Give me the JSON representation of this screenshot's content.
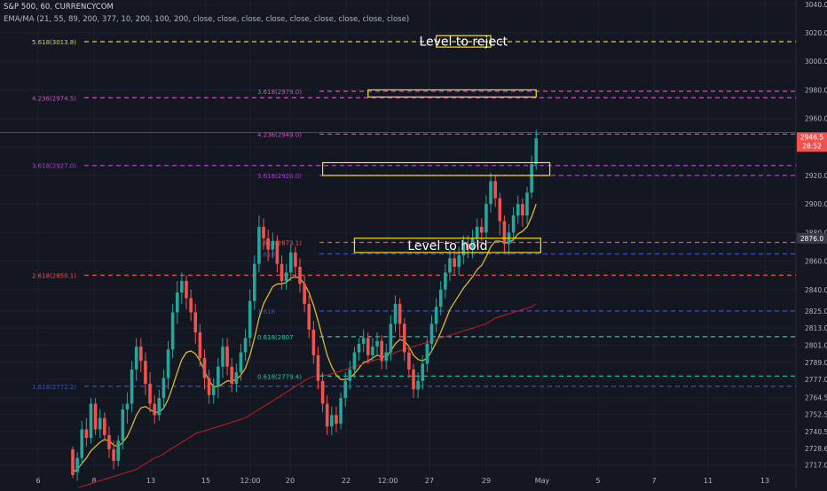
{
  "header": {
    "symbol_line": "S&P 500, 60, CURRENCYCOM",
    "indicator_line": "EMA/MA (21, 55, 89, 200, 377, 10, 200, 100, 200, close, close, close, close, close, close, close, close, close)"
  },
  "colors": {
    "background": "#131722",
    "grid": "#1c2030",
    "axis_text": "#b2b5be",
    "candle_up": "#26a69a",
    "candle_down": "#ef5350",
    "ema_fast": "#d9b82e",
    "ma_slow": "#b71c1c",
    "annotation_box": "#ffe000",
    "annotation_text": "#ffffff",
    "last_price_label": "#ef5350",
    "current_price_label": "#363a45"
  },
  "chart_data": {
    "type": "candlestick",
    "xlabel": "",
    "ylabel": "",
    "x_ticks": [
      "6",
      "8",
      "13",
      "15",
      "12:00",
      "20",
      "22",
      "12:00",
      "27",
      "29",
      "May",
      "5",
      "7",
      "11",
      "13"
    ],
    "y_ticks": [
      2717.0,
      2728.6,
      2740.5,
      2752.5,
      2764.5,
      2777.0,
      2789.0,
      2801.0,
      2813.0,
      2825.0,
      2840.0,
      2860.0,
      2880.0,
      2900.0,
      2920.0,
      2940.0,
      2960.0,
      2980.0,
      3000.0,
      3020.0,
      3040.0
    ],
    "ylim": [
      2710,
      3043
    ],
    "last_price": "2946.5",
    "last_price_value": 2946.5,
    "countdown": "28:52",
    "current_price": "2876.0",
    "current_price_value": 2876.0,
    "candles": [
      [
        2728,
        2710,
        2730,
        2708
      ],
      [
        2712,
        2722,
        2726,
        2706
      ],
      [
        2722,
        2742,
        2748,
        2718
      ],
      [
        2742,
        2736,
        2750,
        2730
      ],
      [
        2736,
        2760,
        2764,
        2732
      ],
      [
        2760,
        2742,
        2764,
        2738
      ],
      [
        2742,
        2750,
        2756,
        2736
      ],
      [
        2750,
        2738,
        2754,
        2734
      ],
      [
        2738,
        2728,
        2744,
        2722
      ],
      [
        2728,
        2720,
        2734,
        2714
      ],
      [
        2720,
        2734,
        2738,
        2716
      ],
      [
        2734,
        2756,
        2760,
        2728
      ],
      [
        2756,
        2760,
        2768,
        2746
      ],
      [
        2760,
        2784,
        2790,
        2754
      ],
      [
        2784,
        2800,
        2806,
        2776
      ],
      [
        2800,
        2790,
        2806,
        2782
      ],
      [
        2790,
        2774,
        2796,
        2766
      ],
      [
        2774,
        2760,
        2782,
        2754
      ],
      [
        2760,
        2752,
        2766,
        2746
      ],
      [
        2752,
        2764,
        2770,
        2748
      ],
      [
        2764,
        2778,
        2784,
        2756
      ],
      [
        2778,
        2798,
        2804,
        2770
      ],
      [
        2798,
        2824,
        2830,
        2792
      ],
      [
        2824,
        2838,
        2846,
        2816
      ],
      [
        2838,
        2846,
        2852,
        2830
      ],
      [
        2846,
        2834,
        2850,
        2826
      ],
      [
        2834,
        2824,
        2840,
        2818
      ],
      [
        2824,
        2810,
        2830,
        2802
      ],
      [
        2810,
        2792,
        2816,
        2786
      ],
      [
        2792,
        2778,
        2798,
        2770
      ],
      [
        2778,
        2766,
        2784,
        2760
      ],
      [
        2766,
        2772,
        2778,
        2760
      ],
      [
        2772,
        2786,
        2792,
        2764
      ],
      [
        2786,
        2800,
        2806,
        2778
      ],
      [
        2800,
        2786,
        2806,
        2780
      ],
      [
        2786,
        2774,
        2792,
        2768
      ],
      [
        2774,
        2782,
        2788,
        2768
      ],
      [
        2782,
        2796,
        2802,
        2776
      ],
      [
        2796,
        2806,
        2812,
        2790
      ],
      [
        2806,
        2832,
        2840,
        2800
      ],
      [
        2832,
        2858,
        2864,
        2826
      ],
      [
        2858,
        2884,
        2892,
        2852
      ],
      [
        2884,
        2876,
        2890,
        2868
      ],
      [
        2876,
        2868,
        2882,
        2860
      ],
      [
        2868,
        2874,
        2880,
        2862
      ],
      [
        2874,
        2858,
        2878,
        2852
      ],
      [
        2858,
        2846,
        2864,
        2840
      ],
      [
        2846,
        2852,
        2858,
        2840
      ],
      [
        2852,
        2866,
        2872,
        2846
      ],
      [
        2866,
        2856,
        2870,
        2848
      ],
      [
        2856,
        2844,
        2862,
        2838
      ],
      [
        2844,
        2830,
        2850,
        2824
      ],
      [
        2830,
        2812,
        2836,
        2806
      ],
      [
        2812,
        2794,
        2818,
        2788
      ],
      [
        2794,
        2776,
        2800,
        2770
      ],
      [
        2776,
        2760,
        2782,
        2754
      ],
      [
        2760,
        2744,
        2766,
        2738
      ],
      [
        2744,
        2752,
        2758,
        2738
      ],
      [
        2752,
        2746,
        2758,
        2740
      ],
      [
        2746,
        2764,
        2768,
        2742
      ],
      [
        2764,
        2776,
        2782,
        2758
      ],
      [
        2776,
        2784,
        2790,
        2770
      ],
      [
        2784,
        2796,
        2800,
        2778
      ],
      [
        2796,
        2802,
        2806,
        2790
      ],
      [
        2802,
        2806,
        2812,
        2796
      ],
      [
        2806,
        2794,
        2810,
        2788
      ],
      [
        2794,
        2800,
        2806,
        2790
      ],
      [
        2800,
        2804,
        2810,
        2794
      ],
      [
        2804,
        2790,
        2808,
        2784
      ],
      [
        2790,
        2796,
        2802,
        2784
      ],
      [
        2796,
        2816,
        2822,
        2790
      ],
      [
        2816,
        2830,
        2836,
        2810
      ],
      [
        2830,
        2816,
        2834,
        2806
      ],
      [
        2816,
        2796,
        2820,
        2790
      ],
      [
        2796,
        2784,
        2800,
        2778
      ],
      [
        2784,
        2770,
        2788,
        2764
      ],
      [
        2770,
        2776,
        2782,
        2764
      ],
      [
        2776,
        2788,
        2794,
        2770
      ],
      [
        2788,
        2802,
        2806,
        2782
      ],
      [
        2802,
        2816,
        2822,
        2796
      ],
      [
        2816,
        2828,
        2834,
        2810
      ],
      [
        2828,
        2840,
        2846,
        2822
      ],
      [
        2840,
        2852,
        2858,
        2834
      ],
      [
        2852,
        2862,
        2868,
        2846
      ],
      [
        2862,
        2856,
        2868,
        2850
      ],
      [
        2856,
        2864,
        2870,
        2850
      ],
      [
        2864,
        2872,
        2878,
        2858
      ],
      [
        2872,
        2868,
        2878,
        2862
      ],
      [
        2868,
        2876,
        2882,
        2862
      ],
      [
        2876,
        2884,
        2890,
        2870
      ],
      [
        2884,
        2880,
        2890,
        2874
      ],
      [
        2880,
        2900,
        2906,
        2876
      ],
      [
        2900,
        2916,
        2922,
        2894
      ],
      [
        2916,
        2904,
        2920,
        2898
      ],
      [
        2904,
        2888,
        2908,
        2878
      ],
      [
        2888,
        2872,
        2892,
        2866
      ],
      [
        2872,
        2880,
        2886,
        2864
      ],
      [
        2880,
        2892,
        2898,
        2874
      ],
      [
        2892,
        2900,
        2906,
        2886
      ],
      [
        2900,
        2892,
        2904,
        2884
      ],
      [
        2892,
        2908,
        2912,
        2886
      ],
      [
        2908,
        2928,
        2934,
        2904
      ],
      [
        2928,
        2946,
        2952,
        2924
      ]
    ],
    "series": [
      {
        "type": "line",
        "values": [
          2712,
          2714,
          2718,
          2722,
          2727,
          2730,
          2733,
          2735,
          2734,
          2731,
          2730,
          2733,
          2737,
          2744,
          2752,
          2757,
          2758,
          2756,
          2754,
          2754,
          2757,
          2763,
          2772,
          2782,
          2791,
          2796,
          2797,
          2795,
          2790,
          2783,
          2776,
          2772,
          2772,
          2774,
          2776,
          2776,
          2777,
          2780,
          2785,
          2794,
          2806,
          2820,
          2830,
          2836,
          2842,
          2844,
          2844,
          2845,
          2848,
          2849,
          2848,
          2844,
          2838,
          2829,
          2818,
          2806,
          2794,
          2786,
          2780,
          2777,
          2777,
          2778,
          2781,
          2785,
          2789,
          2790,
          2792,
          2794,
          2793,
          2793,
          2797,
          2802,
          2805,
          2804,
          2800,
          2794,
          2791,
          2790,
          2792,
          2797,
          2803,
          2810,
          2818,
          2826,
          2831,
          2836,
          2841,
          2845,
          2849,
          2854,
          2857,
          2863,
          2870,
          2874,
          2874,
          2873,
          2873,
          2875,
          2879,
          2881,
          2884,
          2891,
          2900
        ]
      },
      {
        "type": "line",
        "values": [
          2700,
          2701,
          2702,
          2703,
          2704,
          2705,
          2706,
          2707,
          2708,
          2709,
          2710,
          2711,
          2712,
          2713,
          2714,
          2716,
          2718,
          2720,
          2722,
          2723,
          2725,
          2727,
          2729,
          2731,
          2733,
          2735,
          2737,
          2739,
          2740,
          2741,
          2742,
          2743,
          2744,
          2745,
          2746,
          2747,
          2748,
          2749,
          2750,
          2752,
          2754,
          2756,
          2758,
          2760,
          2762,
          2764,
          2766,
          2768,
          2770,
          2772,
          2774,
          2776,
          2778,
          2779,
          2780,
          2780,
          2780,
          2781,
          2782,
          2783,
          2784,
          2785,
          2786,
          2787,
          2788,
          2789,
          2790,
          2791,
          2792,
          2793,
          2794,
          2796,
          2797,
          2798,
          2799,
          2800,
          2801,
          2802,
          2803,
          2804,
          2805,
          2806,
          2807,
          2808,
          2809,
          2810,
          2811,
          2812,
          2813,
          2814,
          2815,
          2816,
          2818,
          2820,
          2821,
          2822,
          2823,
          2824,
          2825,
          2826,
          2827,
          2828,
          2830
        ]
      }
    ]
  },
  "fib_levels": [
    {
      "label": "5.618(3013.8)",
      "price": 3013.8,
      "color": "#d4d44b",
      "label_pos": "left"
    },
    {
      "label": "4.236(2974.5)",
      "price": 2974.5,
      "color": "#d052c0",
      "label_pos": "left"
    },
    {
      "label": "3.618(2979.0)",
      "price": 2979.0,
      "color": "#d052c0",
      "label_pos": "mid"
    },
    {
      "label": "4.236(2949.0)",
      "price": 2949.0,
      "color": "#d052c0",
      "label_pos": "mid"
    },
    {
      "label": "3.618(2927.0)",
      "price": 2927.0,
      "color": "#b040d0",
      "label_pos": "left"
    },
    {
      "label": "3.618(2920.0)",
      "price": 2920.0,
      "color": "#b040d0",
      "label_pos": "mid"
    },
    {
      "label": "2.618(2873.1)",
      "price": 2873.1,
      "color": "#ef5350",
      "label_pos": "mid"
    },
    {
      "label": "1.618",
      "price": 2865.0,
      "color": "#3f51b5",
      "label_pos": "mid"
    },
    {
      "label": "2.618(2850.1)",
      "price": 2850.1,
      "color": "#ef5350",
      "label_pos": "left"
    },
    {
      "label": "1.618",
      "price": 2825.0,
      "color": "#3f51b5",
      "label_pos": "mid"
    },
    {
      "label": "0.618(2807",
      "price": 2807.0,
      "color": "#26c6a8",
      "label_pos": "mid"
    },
    {
      "label": "0.618(2779.4)",
      "price": 2779.4,
      "color": "#26c6a8",
      "label_pos": "mid"
    },
    {
      "label": "1.618(2772.2)",
      "price": 2772.2,
      "color": "#3f51b5",
      "label_pos": "left"
    }
  ],
  "annotations": [
    {
      "text": "Level to reject",
      "top": 3018,
      "bottom": 3010,
      "x_start": 80,
      "x_end": 92
    },
    {
      "text": "",
      "top": 2980,
      "bottom": 2975,
      "x_start": 65,
      "x_end": 102
    },
    {
      "text": "",
      "top": 2929,
      "bottom": 2920,
      "x_start": 55,
      "x_end": 105
    },
    {
      "text": "Level to hold",
      "top": 2876,
      "bottom": 2866,
      "x_start": 62,
      "x_end": 103
    }
  ],
  "price_line_level": 2950
}
